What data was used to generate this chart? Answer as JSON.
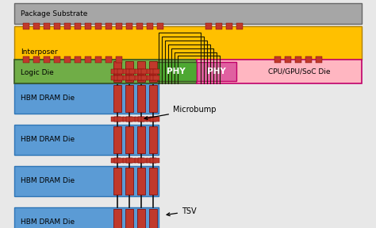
{
  "hbm_color": "#5b9bd5",
  "hbm_border": "#2e75b6",
  "tsv_color": "#c0392b",
  "logic_color": "#70ad47",
  "logic_border": "#375623",
  "phy_hbm_color": "#4ea832",
  "phy_cpu_color": "#e060a0",
  "cpu_color": "#ffb6c1",
  "cpu_border": "#c0006a",
  "interposer_color": "#ffc000",
  "interposer_border": "#b08000",
  "substrate_color": "#a6a6a6",
  "substrate_border": "#666666",
  "bump_color": "#c0392b",
  "wire_color": "#1a1a00",
  "tsv_label": "TSV",
  "microbump_label": "Microbump",
  "logic_label": "Logic Die",
  "phy_hbm_label": "PHY",
  "phy_cpu_label": "PHY",
  "cpu_label": "CPU/GPU/SoC Die",
  "interposer_label": "Interposer",
  "substrate_label": "Package Substrate",
  "hbm_die_label": "HBM DRAM Die"
}
